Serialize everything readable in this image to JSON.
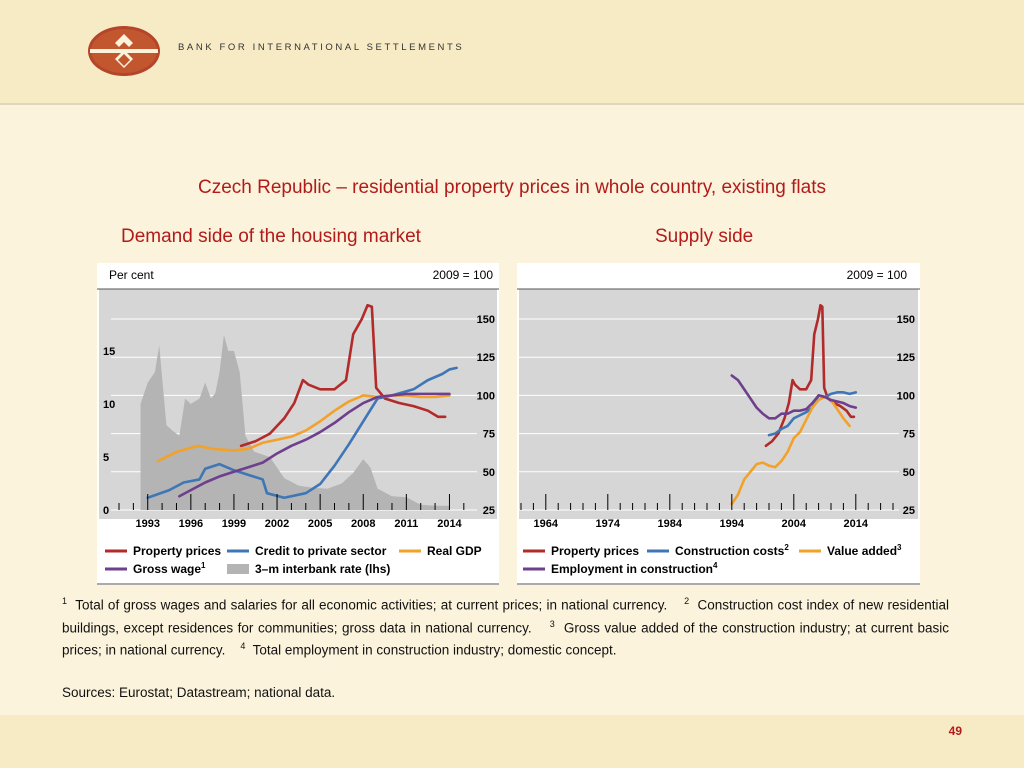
{
  "header": {
    "org": "BANK FOR INTERNATIONAL SETTLEMENTS"
  },
  "title": "Czech Republic – residential property prices in whole country, existing flats",
  "left": {
    "subtitle": "Demand side of the housing market",
    "lhs_unit": "Per cent",
    "rhs_unit": "2009 = 100"
  },
  "right": {
    "subtitle": "Supply side",
    "rhs_unit": "2009 = 100"
  },
  "footnotes": {
    "n1": "1",
    "t1": "Total of gross wages and salaries for all economic activities; at current prices; in national currency.",
    "n2": "2",
    "t2": "Construction cost index of new residential buildings, except residences for communities; gross data in national currency.",
    "n3": "3",
    "t3": "Gross value added of the construction industry; at current basic prices; in national currency.",
    "n4": "4",
    "t4": "Total employment in construction industry; domestic concept."
  },
  "sources": "Sources: Eurostat; Datastream; national data.",
  "page_number": "49",
  "colors": {
    "red": "#b22b2a",
    "blue": "#3f76b6",
    "orange": "#f2a12a",
    "purple": "#6e3f8c",
    "grey": "#b4b4b4",
    "title": "#b31b1b"
  },
  "chart_data": [
    {
      "type": "line",
      "title": "Demand side of the housing market",
      "ylabel_left": "Per cent",
      "ylabel_right": "2009 = 100",
      "xlim": [
        1991,
        2015.5
      ],
      "ylim_left": [
        0,
        18
      ],
      "ylim_right": [
        25,
        150
      ],
      "left_ticks": [
        0,
        5,
        10,
        15
      ],
      "right_ticks": [
        25,
        50,
        75,
        100,
        125,
        150
      ],
      "x_ticks": [
        1993,
        1996,
        1999,
        2002,
        2005,
        2008,
        2011,
        2014
      ],
      "legend": "bottom",
      "series": [
        {
          "name": "Property prices",
          "color": "#b22b2a",
          "axis": "right",
          "points": [
            [
              1999.5,
              67
            ],
            [
              2000.5,
              70
            ],
            [
              2001.5,
              75
            ],
            [
              2002.5,
              85
            ],
            [
              2003.2,
              95
            ],
            [
              2003.8,
              110
            ],
            [
              2004.2,
              107
            ],
            [
              2005,
              104
            ],
            [
              2006,
              104
            ],
            [
              2006.8,
              110
            ],
            [
              2007.3,
              140
            ],
            [
              2007.9,
              150
            ],
            [
              2008.3,
              159
            ],
            [
              2008.6,
              158
            ],
            [
              2008.9,
              105
            ],
            [
              2009.5,
              98
            ],
            [
              2010.5,
              95
            ],
            [
              2011.5,
              93
            ],
            [
              2012.5,
              90
            ],
            [
              2013.2,
              86
            ],
            [
              2013.7,
              86
            ]
          ]
        },
        {
          "name": "Credit to private sector",
          "color": "#3f76b6",
          "axis": "right",
          "points": [
            [
              1993,
              33
            ],
            [
              1994.5,
              38
            ],
            [
              1995.5,
              43
            ],
            [
              1996.6,
              45
            ],
            [
              1997,
              52
            ],
            [
              1998,
              55
            ],
            [
              1999,
              51
            ],
            [
              2000,
              48
            ],
            [
              2001,
              45
            ],
            [
              2001.3,
              36
            ],
            [
              2002.5,
              33
            ],
            [
              2004,
              36
            ],
            [
              2005,
              42
            ],
            [
              2006,
              54
            ],
            [
              2007,
              68
            ],
            [
              2008,
              83
            ],
            [
              2009,
              98
            ],
            [
              2010,
              100
            ],
            [
              2011.5,
              104
            ],
            [
              2012.5,
              110
            ],
            [
              2013.5,
              114
            ],
            [
              2014,
              117
            ],
            [
              2014.5,
              118
            ]
          ]
        },
        {
          "name": "Real GDP",
          "color": "#f2a12a",
          "axis": "right",
          "points": [
            [
              1993.7,
              57
            ],
            [
              1995,
              63
            ],
            [
              1996.5,
              67
            ],
            [
              1997.5,
              65
            ],
            [
              1999,
              64
            ],
            [
              2000,
              65
            ],
            [
              2001,
              69
            ],
            [
              2002,
              71
            ],
            [
              2003,
              73
            ],
            [
              2004,
              77
            ],
            [
              2005,
              83
            ],
            [
              2006,
              90
            ],
            [
              2007,
              96
            ],
            [
              2008,
              100
            ],
            [
              2009,
              99
            ],
            [
              2010,
              100
            ],
            [
              2011,
              100
            ],
            [
              2012,
              99
            ],
            [
              2013,
              99
            ],
            [
              2014,
              100
            ]
          ]
        },
        {
          "name": "Gross wage",
          "superscript": "1",
          "color": "#6e3f8c",
          "axis": "right",
          "points": [
            [
              1995.2,
              34
            ],
            [
              1996,
              38
            ],
            [
              1997,
              43
            ],
            [
              1998,
              47
            ],
            [
              1999,
              50
            ],
            [
              2000,
              53
            ],
            [
              2001,
              56
            ],
            [
              2002,
              62
            ],
            [
              2003,
              67
            ],
            [
              2004,
              71
            ],
            [
              2005,
              76
            ],
            [
              2006,
              82
            ],
            [
              2007,
              89
            ],
            [
              2008,
              95
            ],
            [
              2009,
              99
            ],
            [
              2010,
              100
            ],
            [
              2011,
              101
            ],
            [
              2012,
              101
            ],
            [
              2013,
              101
            ],
            [
              2014,
              101
            ]
          ]
        },
        {
          "name": "3–m interbank rate (lhs)",
          "color": "#b4b4b4",
          "axis": "left",
          "style": "area",
          "points": [
            [
              1992.5,
              10
            ],
            [
              1993,
              12
            ],
            [
              1993.5,
              13
            ],
            [
              1993.8,
              15.5
            ],
            [
              1994.3,
              8
            ],
            [
              1994.7,
              7.5
            ],
            [
              1995.2,
              7
            ],
            [
              1995.6,
              10.5
            ],
            [
              1996,
              10
            ],
            [
              1996.6,
              10.5
            ],
            [
              1997,
              12
            ],
            [
              1997.4,
              10.5
            ],
            [
              1997.7,
              11
            ],
            [
              1998,
              13
            ],
            [
              1998.3,
              16.5
            ],
            [
              1998.6,
              15
            ],
            [
              1999,
              15
            ],
            [
              1999.4,
              13
            ],
            [
              1999.8,
              7
            ],
            [
              2000.4,
              5.5
            ],
            [
              2001.5,
              5
            ],
            [
              2002.5,
              3
            ],
            [
              2003.5,
              2.3
            ],
            [
              2004.5,
              2.1
            ],
            [
              2005.5,
              2
            ],
            [
              2006.5,
              2.5
            ],
            [
              2007.3,
              3.5
            ],
            [
              2008,
              4.8
            ],
            [
              2008.5,
              4
            ],
            [
              2009,
              2
            ],
            [
              2010,
              1.3
            ],
            [
              2011,
              1.2
            ],
            [
              2012,
              0.5
            ],
            [
              2013,
              0.4
            ],
            [
              2014,
              0.4
            ]
          ]
        }
      ]
    },
    {
      "type": "line",
      "title": "Supply side",
      "ylabel_right": "2009 = 100",
      "xlim": [
        1960,
        2020
      ],
      "ylim_right": [
        25,
        150
      ],
      "right_ticks": [
        25,
        50,
        75,
        100,
        125,
        150
      ],
      "x_ticks": [
        1964,
        1974,
        1984,
        1994,
        2004,
        2014
      ],
      "legend": "bottom",
      "series": [
        {
          "name": "Property prices",
          "color": "#b22b2a",
          "points": [
            [
              1999.5,
              67
            ],
            [
              2000.5,
              70
            ],
            [
              2001.5,
              75
            ],
            [
              2002.5,
              85
            ],
            [
              2003.2,
              95
            ],
            [
              2003.8,
              110
            ],
            [
              2004.2,
              107
            ],
            [
              2005,
              104
            ],
            [
              2006,
              104
            ],
            [
              2006.8,
              110
            ],
            [
              2007.3,
              140
            ],
            [
              2007.9,
              150
            ],
            [
              2008.3,
              159
            ],
            [
              2008.6,
              158
            ],
            [
              2008.9,
              105
            ],
            [
              2009.5,
              98
            ],
            [
              2010.5,
              95
            ],
            [
              2011.5,
              93
            ],
            [
              2012.5,
              90
            ],
            [
              2013.2,
              86
            ],
            [
              2013.7,
              86
            ]
          ]
        },
        {
          "name": "Construction costs",
          "superscript": "2",
          "color": "#3f76b6",
          "points": [
            [
              2000,
              74
            ],
            [
              2001,
              75
            ],
            [
              2002,
              78
            ],
            [
              2003,
              80
            ],
            [
              2004,
              85
            ],
            [
              2005,
              87
            ],
            [
              2006,
              89
            ],
            [
              2007,
              92
            ],
            [
              2008,
              100
            ],
            [
              2009,
              99
            ],
            [
              2010,
              101
            ],
            [
              2011,
              102
            ],
            [
              2012,
              102
            ],
            [
              2013,
              101
            ],
            [
              2014,
              102
            ]
          ]
        },
        {
          "name": "Value added",
          "superscript": "3",
          "color": "#f2a12a",
          "points": [
            [
              1994,
              29
            ],
            [
              1995,
              35
            ],
            [
              1996,
              45
            ],
            [
              1997,
              50
            ],
            [
              1998,
              55
            ],
            [
              1999,
              56
            ],
            [
              2000,
              54
            ],
            [
              2001,
              53
            ],
            [
              2002,
              57
            ],
            [
              2003,
              63
            ],
            [
              2004,
              72
            ],
            [
              2005,
              76
            ],
            [
              2006,
              84
            ],
            [
              2007,
              92
            ],
            [
              2008,
              97
            ],
            [
              2009,
              99
            ],
            [
              2010,
              97
            ],
            [
              2011,
              91
            ],
            [
              2012,
              85
            ],
            [
              2013,
              80
            ]
          ]
        },
        {
          "name": "Employment in construction",
          "superscript": "4",
          "color": "#6e3f8c",
          "points": [
            [
              1994,
              113
            ],
            [
              1995,
              110
            ],
            [
              1996,
              104
            ],
            [
              1997,
              98
            ],
            [
              1998,
              92
            ],
            [
              1999,
              88
            ],
            [
              2000,
              85
            ],
            [
              2001,
              85
            ],
            [
              2002,
              88
            ],
            [
              2003,
              88
            ],
            [
              2004,
              90
            ],
            [
              2005,
              90
            ],
            [
              2006,
              91
            ],
            [
              2007,
              95
            ],
            [
              2008,
              100
            ],
            [
              2009,
              99
            ],
            [
              2010,
              97
            ],
            [
              2011,
              96
            ],
            [
              2012,
              95
            ],
            [
              2013,
              93
            ],
            [
              2014,
              92
            ]
          ]
        }
      ]
    }
  ]
}
